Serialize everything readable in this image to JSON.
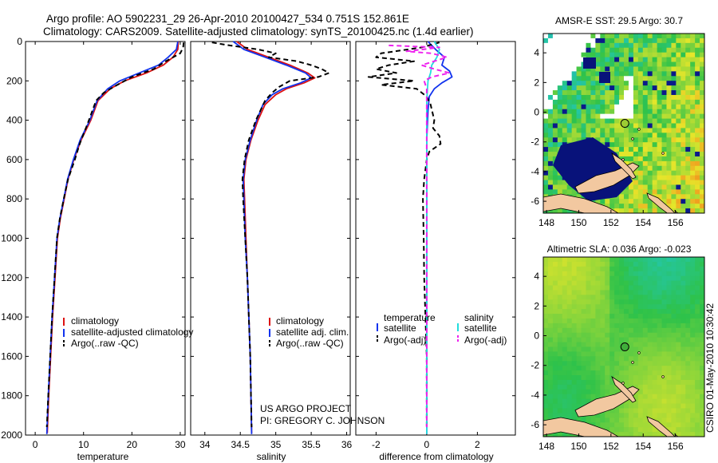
{
  "figure": {
    "title_line1": "Argo profile: AO 5902231_29 26-Apr-2010 20100427_534 0.751S 152.861E",
    "title_line2": "Climatology: CARS2009. Satellite-adjusted climatology: synTS_20100425.nc (1.4d earlier)",
    "side_stamp": "CSIRO 01-May-2010 10:30:42",
    "credit_line1": "US ARGO PROJECT",
    "credit_line2": "PI: GREGORY C. JOHNSON"
  },
  "colors": {
    "climatology": "#dd1111",
    "satellite": "#1133ee",
    "argo": "#000000",
    "sat_salinity": "#22dddd",
    "argo_salinity": "#ee22ee",
    "land": "#f2c8a0"
  },
  "chart_data": [
    {
      "type": "line",
      "id": "temperature",
      "xlabel": "temperature",
      "xlim": [
        -2,
        31
      ],
      "ylim": [
        2000,
        0
      ],
      "y_reversed": true,
      "xticks": [
        0,
        10,
        20,
        30
      ],
      "yticks": [
        0,
        200,
        400,
        600,
        800,
        1000,
        1200,
        1400,
        1600,
        1800,
        2000
      ],
      "legend": [
        "climatology",
        "satellite-adjusted climatology",
        "Argo(..raw -QC)"
      ],
      "series": [
        {
          "name": "climatology",
          "style": "solid",
          "color": "#dd1111",
          "points": [
            [
              29.6,
              0
            ],
            [
              29.5,
              40
            ],
            [
              28.5,
              80
            ],
            [
              26.5,
              120
            ],
            [
              23,
              160
            ],
            [
              18.5,
              200
            ],
            [
              15.5,
              240
            ],
            [
              13,
              300
            ],
            [
              11.5,
              400
            ],
            [
              9.5,
              500
            ],
            [
              8,
              600
            ],
            [
              6.8,
              700
            ],
            [
              6,
              800
            ],
            [
              5.2,
              900
            ],
            [
              4.6,
              1000
            ],
            [
              4.1,
              1200
            ],
            [
              3.6,
              1400
            ],
            [
              3.2,
              1600
            ],
            [
              2.8,
              1800
            ],
            [
              2.5,
              1990
            ]
          ]
        },
        {
          "name": "satellite-adjusted climatology",
          "style": "solid",
          "color": "#1133ee",
          "points": [
            [
              29.5,
              0
            ],
            [
              29.2,
              40
            ],
            [
              27.5,
              80
            ],
            [
              25.5,
              120
            ],
            [
              21.5,
              160
            ],
            [
              17.5,
              200
            ],
            [
              15,
              240
            ],
            [
              12.8,
              300
            ],
            [
              11.3,
              400
            ],
            [
              9.3,
              500
            ],
            [
              7.9,
              600
            ],
            [
              6.7,
              700
            ],
            [
              5.9,
              800
            ],
            [
              5.1,
              900
            ],
            [
              4.5,
              1000
            ],
            [
              4,
              1200
            ],
            [
              3.5,
              1400
            ],
            [
              3.1,
              1600
            ],
            [
              2.7,
              1800
            ],
            [
              2.4,
              1995
            ]
          ]
        },
        {
          "name": "Argo(..raw -QC)",
          "style": "dashed",
          "color": "#000000",
          "points": [
            [
              30.7,
              5
            ],
            [
              30.6,
              30
            ],
            [
              30,
              60
            ],
            [
              27,
              100
            ],
            [
              24.5,
              140
            ],
            [
              20,
              180
            ],
            [
              17,
              220
            ],
            [
              14.2,
              260
            ],
            [
              12.6,
              300
            ],
            [
              10.8,
              420
            ],
            [
              9.2,
              520
            ],
            [
              8.2,
              600
            ],
            [
              6.8,
              700
            ],
            [
              5.9,
              800
            ],
            [
              5.1,
              900
            ],
            [
              4.5,
              1000
            ],
            [
              4,
              1200
            ],
            [
              3.5,
              1400
            ],
            [
              3.1,
              1600
            ],
            [
              2.7,
              1800
            ],
            [
              2.4,
              1960
            ]
          ]
        }
      ]
    },
    {
      "type": "line",
      "id": "salinity",
      "xlabel": "salinity",
      "xlim": [
        33.8,
        36.05
      ],
      "ylim": [
        2000,
        0
      ],
      "y_reversed": true,
      "xticks": [
        34,
        34.5,
        35,
        35.5,
        36
      ],
      "legend": [
        "climatology",
        "satellite adj. clim.",
        "Argo(..raw -QC)"
      ],
      "series": [
        {
          "name": "climatology",
          "style": "solid",
          "color": "#dd1111",
          "points": [
            [
              34.45,
              0
            ],
            [
              34.6,
              40
            ],
            [
              34.9,
              80
            ],
            [
              35.2,
              120
            ],
            [
              35.45,
              160
            ],
            [
              35.55,
              185
            ],
            [
              35.4,
              210
            ],
            [
              35.15,
              240
            ],
            [
              35.0,
              270
            ],
            [
              34.85,
              320
            ],
            [
              34.75,
              400
            ],
            [
              34.65,
              500
            ],
            [
              34.58,
              600
            ],
            [
              34.55,
              700
            ],
            [
              34.56,
              800
            ],
            [
              34.58,
              1000
            ],
            [
              34.6,
              1200
            ],
            [
              34.62,
              1400
            ],
            [
              34.64,
              1600
            ],
            [
              34.65,
              1800
            ],
            [
              34.66,
              1990
            ]
          ]
        },
        {
          "name": "satellite adj. clim.",
          "style": "solid",
          "color": "#1133ee",
          "points": [
            [
              34.4,
              0
            ],
            [
              34.55,
              40
            ],
            [
              34.85,
              80
            ],
            [
              35.15,
              120
            ],
            [
              35.42,
              160
            ],
            [
              35.5,
              185
            ],
            [
              35.35,
              210
            ],
            [
              35.1,
              240
            ],
            [
              34.95,
              270
            ],
            [
              34.82,
              320
            ],
            [
              34.73,
              400
            ],
            [
              34.64,
              500
            ],
            [
              34.57,
              600
            ],
            [
              34.54,
              700
            ],
            [
              34.55,
              800
            ],
            [
              34.57,
              1000
            ],
            [
              34.6,
              1200
            ],
            [
              34.62,
              1400
            ],
            [
              34.64,
              1600
            ],
            [
              34.65,
              1800
            ],
            [
              34.66,
              1995
            ]
          ]
        },
        {
          "name": "Argo(..raw -QC)",
          "style": "dashed",
          "color": "#000000",
          "points": [
            [
              34.1,
              5
            ],
            [
              34.35,
              20
            ],
            [
              34.75,
              40
            ],
            [
              35.0,
              60
            ],
            [
              34.9,
              80
            ],
            [
              35.3,
              100
            ],
            [
              35.5,
              120
            ],
            [
              35.65,
              140
            ],
            [
              35.75,
              160
            ],
            [
              35.6,
              180
            ],
            [
              35.2,
              200
            ],
            [
              35.05,
              230
            ],
            [
              34.95,
              260
            ],
            [
              34.85,
              300
            ],
            [
              34.72,
              400
            ],
            [
              34.62,
              500
            ],
            [
              34.56,
              600
            ],
            [
              34.53,
              700
            ],
            [
              34.54,
              800
            ],
            [
              34.57,
              1000
            ],
            [
              34.6,
              1200
            ],
            [
              34.62,
              1400
            ],
            [
              34.64,
              1600
            ],
            [
              34.65,
              1800
            ],
            [
              34.66,
              1960
            ]
          ]
        }
      ]
    },
    {
      "type": "line",
      "id": "difference",
      "xlabel": "difference from climatology",
      "xlim": [
        -2.8,
        3.5
      ],
      "ylim": [
        2000,
        0
      ],
      "y_reversed": true,
      "xticks": [
        -2,
        0,
        2
      ],
      "legend": [
        "temperature",
        "satellite",
        "Argo(-adj)",
        "salinity",
        "satellite",
        "Argo(-adj)"
      ],
      "series": [
        {
          "name": "satellite",
          "style": "solid",
          "color": "#1133ee",
          "points": [
            [
              0.05,
              0
            ],
            [
              0.35,
              40
            ],
            [
              0.7,
              80
            ],
            [
              0.6,
              120
            ],
            [
              0.9,
              150
            ],
            [
              1.0,
              180
            ],
            [
              0.6,
              210
            ],
            [
              0.3,
              240
            ],
            [
              0.1,
              280
            ],
            [
              0.05,
              350
            ],
            [
              0,
              500
            ],
            [
              0,
              800
            ],
            [
              0,
              1200
            ],
            [
              0,
              1600
            ],
            [
              0,
              1995
            ]
          ]
        },
        {
          "name": "Argo(-adj)",
          "style": "dashed",
          "color": "#000000",
          "points": [
            [
              0.5,
              5
            ],
            [
              -0.2,
              30
            ],
            [
              -1.8,
              60
            ],
            [
              -2.0,
              80
            ],
            [
              -0.5,
              100
            ],
            [
              -1.5,
              120
            ],
            [
              -2.0,
              140
            ],
            [
              -1.2,
              160
            ],
            [
              -2.3,
              180
            ],
            [
              -0.5,
              200
            ],
            [
              -1.8,
              220
            ],
            [
              -0.4,
              240
            ],
            [
              0,
              280
            ],
            [
              0.15,
              320
            ],
            [
              0.3,
              400
            ],
            [
              0.25,
              440
            ],
            [
              0.5,
              480
            ],
            [
              0.55,
              520
            ],
            [
              0.1,
              560
            ],
            [
              0,
              600
            ],
            [
              -0.1,
              700
            ],
            [
              -0.15,
              800
            ],
            [
              -0.12,
              1000
            ],
            [
              -0.1,
              1200
            ],
            [
              -0.05,
              1400
            ],
            [
              0,
              1600
            ],
            [
              0,
              1800
            ],
            [
              0,
              1960
            ]
          ]
        },
        {
          "name": "satellite",
          "style": "solid",
          "color": "#22dddd",
          "points": [
            [
              0.3,
              0
            ],
            [
              0.5,
              40
            ],
            [
              0.4,
              80
            ],
            [
              0.2,
              120
            ],
            [
              0.15,
              160
            ],
            [
              0.05,
              200
            ],
            [
              0,
              300
            ],
            [
              0,
              600
            ],
            [
              0,
              1000
            ],
            [
              0,
              1400
            ],
            [
              0,
              1995
            ]
          ]
        },
        {
          "name": "Argo(-adj)",
          "style": "dashed",
          "color": "#ee22ee",
          "points": [
            [
              -1.5,
              20
            ],
            [
              0.5,
              30
            ],
            [
              -0.8,
              50
            ],
            [
              0.2,
              60
            ],
            [
              0.8,
              80
            ],
            [
              0.3,
              100
            ],
            [
              -0.2,
              120
            ],
            [
              0.3,
              140
            ],
            [
              0.9,
              160
            ],
            [
              0.2,
              180
            ],
            [
              -0.1,
              200
            ],
            [
              0,
              240
            ],
            [
              0,
              300
            ],
            [
              0,
              600
            ],
            [
              0,
              1000
            ],
            [
              0,
              1400
            ],
            [
              0,
              1960
            ]
          ]
        }
      ]
    },
    {
      "type": "heatmap",
      "id": "sst-map",
      "title": "AMSR-E SST: 29.5 Argo: 30.7",
      "xlim": [
        147.8,
        157.8
      ],
      "ylim": [
        -6.8,
        5.3
      ],
      "xticks": [
        148,
        150,
        152,
        154,
        156
      ],
      "yticks": [
        4,
        2,
        0,
        -2,
        -4,
        -6
      ],
      "argo_marker": [
        152.861,
        -0.751
      ]
    },
    {
      "type": "heatmap",
      "id": "sla-map",
      "title": "Altimetric SLA: 0.036 Argo: -0.023",
      "xlim": [
        147.8,
        157.8
      ],
      "ylim": [
        -6.8,
        5.3
      ],
      "xticks": [
        148,
        150,
        152,
        154,
        156
      ],
      "yticks": [
        4,
        2,
        0,
        -2,
        -4,
        -6
      ],
      "argo_marker": [
        152.861,
        -0.751
      ]
    }
  ]
}
